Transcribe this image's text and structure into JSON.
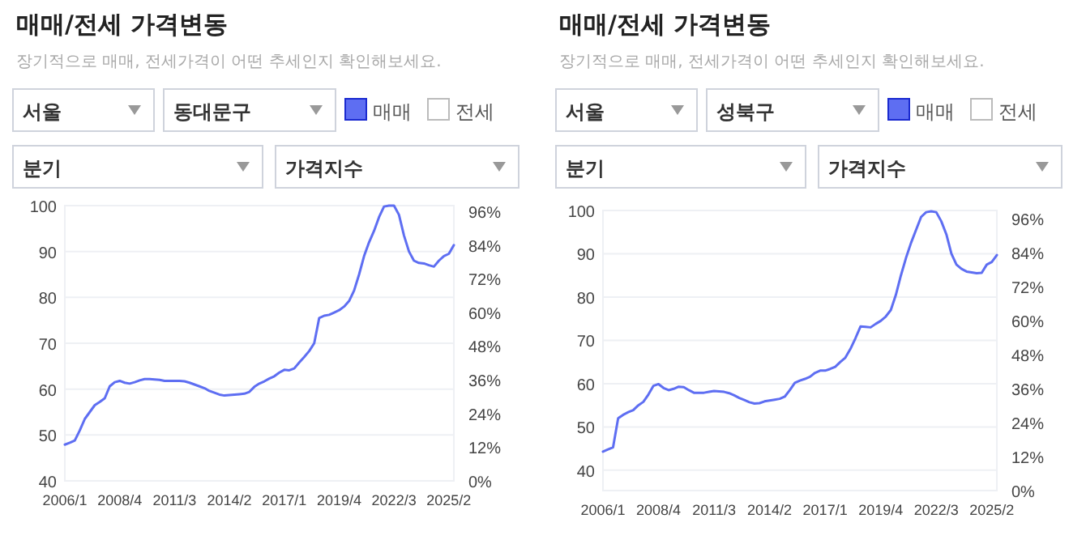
{
  "chart_data": [
    {
      "type": "line",
      "title": "매매/전세 가격변동",
      "subtitle": "장기적으로 매매, 전세가격이 어떤 추세인지 확인해보세요.",
      "annotations": [
        "서울",
        "동대문구",
        "전세",
        "분기",
        "가격지수"
      ],
      "legend": "top",
      "grid": "y",
      "categories": [
        "2006/1",
        null,
        null,
        null,
        null,
        null,
        null,
        null,
        null,
        null,
        null,
        "2008/4",
        null,
        null,
        null,
        null,
        null,
        null,
        null,
        null,
        null,
        null,
        "2011/3",
        null,
        null,
        null,
        null,
        null,
        null,
        null,
        null,
        null,
        null,
        "2014/2",
        null,
        null,
        null,
        null,
        null,
        null,
        null,
        null,
        null,
        null,
        "2017/1",
        null,
        null,
        null,
        null,
        null,
        null,
        null,
        null,
        null,
        null,
        "2019/4",
        null,
        null,
        null,
        null,
        null,
        null,
        null,
        null,
        null,
        null,
        "2022/3",
        null,
        null,
        null,
        null,
        null,
        null,
        null,
        null,
        null,
        null,
        "2025/2",
        null
      ],
      "series": [
        {
          "name": "매매",
          "color": "#5e6ef2",
          "values": [
            47.9,
            48.3,
            48.8,
            51,
            53.5,
            55,
            56.5,
            57.2,
            58,
            60.6,
            61.5,
            61.8,
            61.4,
            61.2,
            61.5,
            61.9,
            62.2,
            62.2,
            62.1,
            62,
            61.8,
            61.8,
            61.8,
            61.8,
            61.7,
            61.4,
            61,
            60.6,
            60.2,
            59.6,
            59.2,
            58.8,
            58.6,
            58.7,
            58.8,
            58.9,
            59,
            59.4,
            60.5,
            61.2,
            61.7,
            62.3,
            62.8,
            63.6,
            64.2,
            64.1,
            64.5,
            65.8,
            67,
            68.3,
            70,
            75.5,
            76,
            76.2,
            76.7,
            77.2,
            78,
            79.2,
            81.5,
            85,
            89,
            92,
            94.5,
            97.5,
            99.8,
            100,
            100,
            98,
            93.5,
            90,
            88,
            87.5,
            87.4,
            87,
            86.7,
            88,
            89,
            89.5,
            91.4
          ]
        }
      ],
      "ylim": [
        40,
        100
      ],
      "yticks": [
        40,
        50,
        60,
        70,
        80,
        90,
        100
      ],
      "y2lim": [
        0,
        98
      ],
      "y2ticks": [
        {
          "value": 0,
          "label": "0%"
        },
        {
          "value": 12,
          "label": "12%"
        },
        {
          "value": 24,
          "label": "24%"
        },
        {
          "value": 36,
          "label": "36%"
        },
        {
          "value": 48,
          "label": "48%"
        },
        {
          "value": 60,
          "label": "60%"
        },
        {
          "value": 72,
          "label": "72%"
        },
        {
          "value": 84,
          "label": "84%"
        },
        {
          "value": 96,
          "label": "96%"
        }
      ]
    },
    {
      "type": "line",
      "title": "매매/전세 가격변동",
      "subtitle": "장기적으로 매매, 전세가격이 어떤 추세인지 확인해보세요.",
      "annotations": [
        "서울",
        "성북구",
        "전세",
        "분기",
        "가격지수"
      ],
      "legend": "top",
      "grid": "y",
      "categories": [
        "2006/1",
        null,
        null,
        null,
        null,
        null,
        null,
        null,
        null,
        null,
        null,
        "2008/4",
        null,
        null,
        null,
        null,
        null,
        null,
        null,
        null,
        null,
        null,
        "2011/3",
        null,
        null,
        null,
        null,
        null,
        null,
        null,
        null,
        null,
        null,
        "2014/2",
        null,
        null,
        null,
        null,
        null,
        null,
        null,
        null,
        null,
        null,
        "2017/1",
        null,
        null,
        null,
        null,
        null,
        null,
        null,
        null,
        null,
        null,
        "2019/4",
        null,
        null,
        null,
        null,
        null,
        null,
        null,
        null,
        null,
        null,
        "2022/3",
        null,
        null,
        null,
        null,
        null,
        null,
        null,
        null,
        null,
        null,
        "2025/2",
        null
      ],
      "series": [
        {
          "name": "매매",
          "color": "#5e6ef2",
          "values": [
            44.3,
            44.8,
            45.3,
            52,
            52.8,
            53.4,
            53.9,
            55,
            55.8,
            57.5,
            59.5,
            59.9,
            59,
            58.5,
            58.8,
            59.3,
            59.2,
            58.5,
            57.9,
            57.9,
            57.9,
            58.1,
            58.3,
            58.2,
            58.1,
            57.8,
            57.3,
            56.7,
            56.2,
            55.7,
            55.4,
            55.5,
            55.9,
            56.1,
            56.3,
            56.5,
            57,
            58.5,
            60.2,
            60.7,
            61.1,
            61.6,
            62.5,
            63,
            63,
            63.4,
            63.9,
            65,
            66,
            68,
            70.5,
            73.2,
            73.1,
            73,
            73.8,
            74.5,
            75.5,
            77,
            80.5,
            85,
            89,
            92.5,
            95.5,
            98.5,
            99.6,
            99.8,
            99.6,
            97.5,
            94.5,
            90,
            87.5,
            86.5,
            85.9,
            85.7,
            85.5,
            85.6,
            87.5,
            88.1,
            89.7
          ]
        }
      ],
      "ylim": [
        35.3,
        100
      ],
      "yticks": [
        40,
        50,
        60,
        70,
        80,
        90,
        100
      ],
      "y2lim": [
        0,
        98.9
      ],
      "y2ticks": [
        {
          "value": 0,
          "label": "0%"
        },
        {
          "value": 12,
          "label": "12%"
        },
        {
          "value": 24,
          "label": "24%"
        },
        {
          "value": 36,
          "label": "36%"
        },
        {
          "value": 48,
          "label": "48%"
        },
        {
          "value": 60,
          "label": "60%"
        },
        {
          "value": 72,
          "label": "72%"
        },
        {
          "value": 84,
          "label": "84%"
        },
        {
          "value": 96,
          "label": "96%"
        }
      ]
    }
  ]
}
